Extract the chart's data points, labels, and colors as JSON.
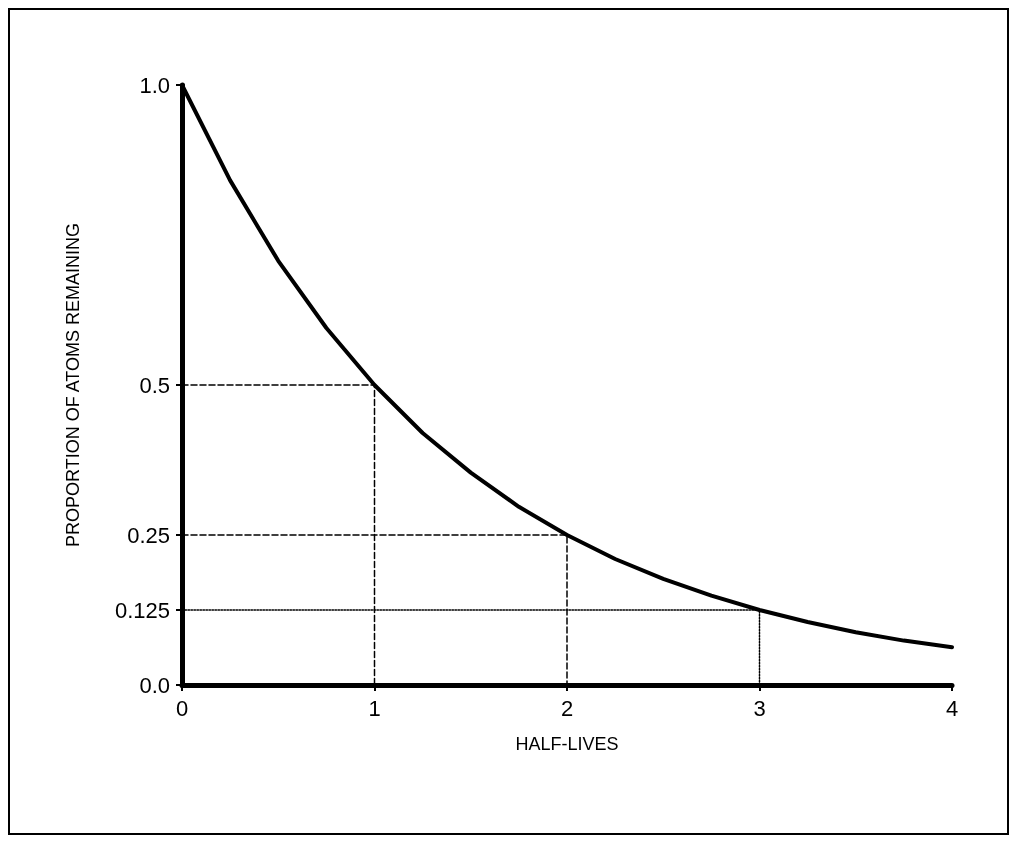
{
  "chart_data": {
    "type": "line",
    "xlabel": "HALF-LIVES",
    "ylabel": "PROPORTION OF ATOMS REMAINING",
    "xlim": [
      0,
      4
    ],
    "xticks": [
      0,
      1,
      2,
      3,
      4
    ],
    "ylim": [
      0,
      1
    ],
    "yticks": [
      {
        "value": 0,
        "label": "0.0"
      },
      0.125,
      0.25,
      0.5,
      {
        "value": 1,
        "label": "1.0"
      }
    ],
    "marker": "none",
    "series": [
      {
        "color": "#000000",
        "line_style": "solid",
        "x": [
          0,
          0.25,
          0.5,
          0.75,
          1,
          1.25,
          1.5,
          1.75,
          2,
          2.25,
          2.5,
          2.75,
          3,
          3.25,
          3.5,
          3.75,
          4
        ],
        "values": [
          1,
          0.841,
          0.707,
          0.595,
          0.5,
          0.42,
          0.354,
          0.297,
          0.25,
          0.21,
          0.177,
          0.149,
          0.125,
          0.105,
          0.088,
          0.074,
          0.063
        ]
      },
      {
        "color": "#000000",
        "line_style": "dashed",
        "x": [
          0,
          1,
          1
        ],
        "values": [
          0.5,
          0.5,
          0
        ]
      },
      {
        "color": "#000000",
        "line_style": "dashed",
        "x": [
          0,
          2,
          2
        ],
        "values": [
          0.25,
          0.25,
          0
        ]
      },
      {
        "color": "#000000",
        "line_style": "dotted",
        "x": [
          0,
          3,
          3
        ],
        "values": [
          0.125,
          0.125,
          0
        ]
      }
    ]
  }
}
